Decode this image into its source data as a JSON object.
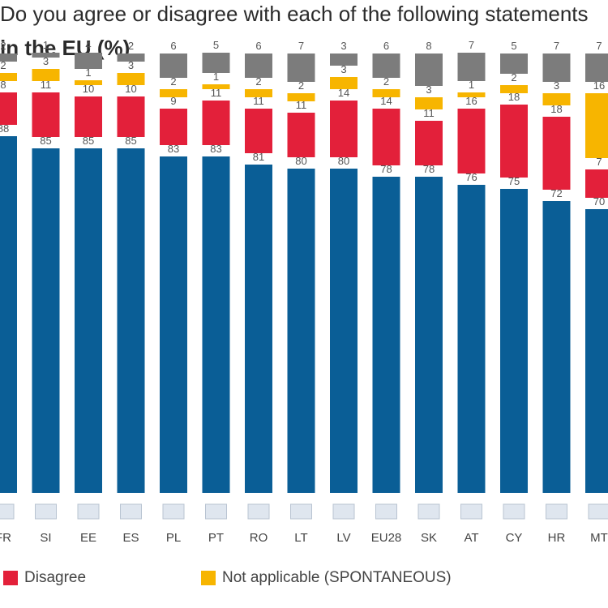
{
  "title": {
    "line1": "Do you agree or disagree with each of the following statements",
    "line2": "in the EU (%)"
  },
  "legend": [
    {
      "label": "Disagree",
      "color": "#e3203a"
    },
    {
      "label": "Not applicable (SPONTANEOUS)",
      "color": "#f7b500"
    }
  ],
  "chart_data": {
    "type": "bar",
    "stacked": true,
    "categories": [
      "FR",
      "SI",
      "EE",
      "ES",
      "PL",
      "PT",
      "RO",
      "LT",
      "LV",
      "EU28",
      "SK",
      "AT",
      "CY",
      "HR",
      "MT"
    ],
    "series": [
      {
        "name": "",
        "color": "#0a5e96",
        "values": [
          88,
          85,
          85,
          85,
          83,
          83,
          81,
          80,
          80,
          78,
          78,
          76,
          75,
          72,
          70
        ]
      },
      {
        "name": "Disagree",
        "color": "#e3203a",
        "values": [
          8,
          11,
          10,
          10,
          9,
          11,
          11,
          11,
          14,
          14,
          11,
          16,
          18,
          18,
          7
        ]
      },
      {
        "name": "Not applicable (SPONTANEOUS)",
        "color": "#f7b500",
        "values": [
          2,
          3,
          1,
          3,
          2,
          1,
          2,
          2,
          3,
          2,
          3,
          1,
          2,
          3,
          16
        ]
      },
      {
        "name": "",
        "color": "#7c7c7c",
        "values": [
          2,
          1,
          4,
          2,
          6,
          5,
          6,
          7,
          3,
          6,
          8,
          7,
          5,
          7,
          7
        ]
      }
    ],
    "ylim": [
      0,
      100
    ],
    "grid": false,
    "legend_position": "bottom"
  }
}
